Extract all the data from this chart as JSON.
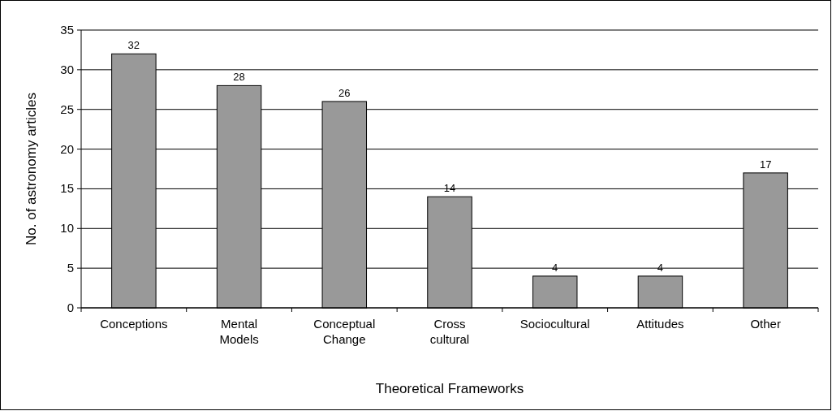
{
  "chart_data": {
    "type": "bar",
    "xlabel": "Theoretical Frameworks",
    "ylabel": "No. of astronomy articles",
    "categories": [
      "Conceptions",
      "Mental Models",
      "Conceptual Change",
      "Cross cultural",
      "Sociocultural",
      "Attitudes",
      "Other"
    ],
    "values": [
      32,
      28,
      26,
      14,
      4,
      4,
      17
    ],
    "color": "#999999",
    "ylim": [
      0,
      35
    ],
    "yticks": [
      0,
      5,
      10,
      15,
      20,
      25,
      30,
      35
    ],
    "grid": "y",
    "data_labels": true
  }
}
